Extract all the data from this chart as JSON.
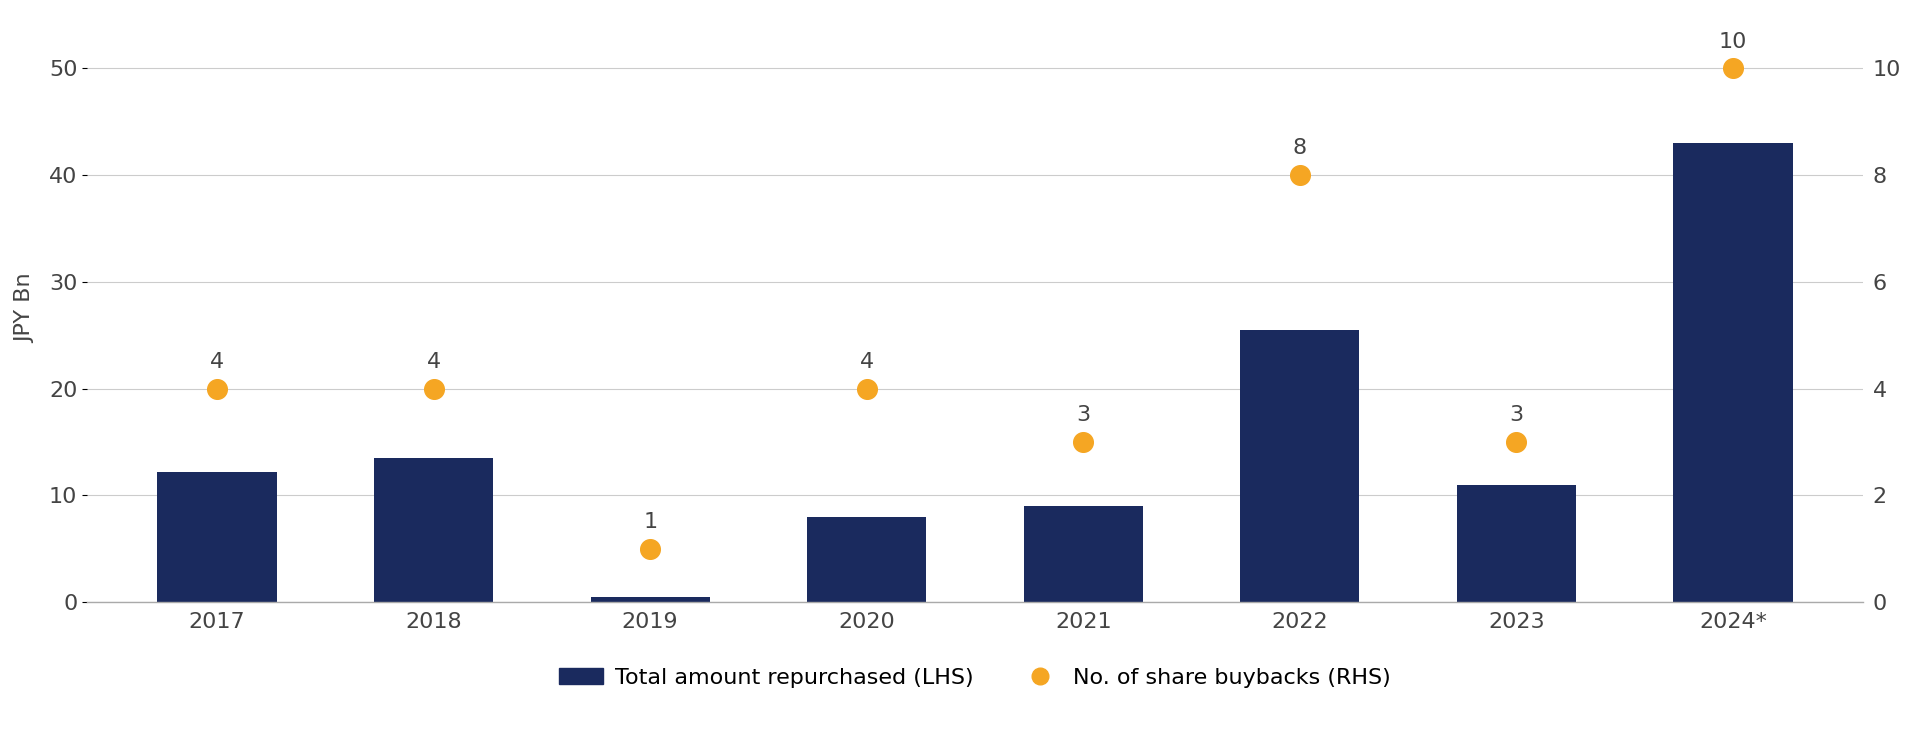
{
  "categories": [
    "2017",
    "2018",
    "2019",
    "2020",
    "2021",
    "2022",
    "2023",
    "2024*"
  ],
  "bar_values": [
    12.2,
    13.5,
    0.5,
    8.0,
    9.0,
    25.5,
    11.0,
    43.0
  ],
  "dot_values": [
    4,
    4,
    1,
    4,
    3,
    8,
    3,
    10
  ],
  "bar_color": "#1a2a5e",
  "dot_color": "#f5a623",
  "ylabel_left": "JPY Bn",
  "ylim_left": [
    0,
    55
  ],
  "ylim_right": [
    0,
    11
  ],
  "yticks_left": [
    0,
    10,
    20,
    30,
    40,
    50
  ],
  "yticks_right": [
    0,
    2,
    4,
    6,
    8,
    10
  ],
  "legend_bar_label": "Total amount repurchased (LHS)",
  "legend_dot_label": "No. of share buybacks (RHS)",
  "background_color": "#ffffff",
  "grid_color": "#cccccc",
  "dot_label_values": [
    4,
    4,
    1,
    4,
    3,
    8,
    3,
    10
  ],
  "dot_size": 200,
  "bar_width": 0.55
}
